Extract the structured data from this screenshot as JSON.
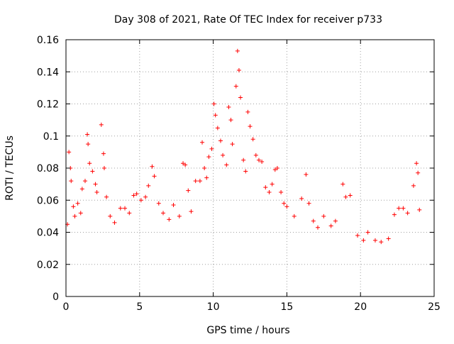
{
  "chart_data": {
    "type": "scatter",
    "title": "Day 308 of 2021, Rate Of TEC Index for receiver p733",
    "xlabel": "GPS time / hours",
    "ylabel": "ROTI / TECUs",
    "xlim": [
      0,
      25
    ],
    "ylim": [
      0,
      0.16
    ],
    "xticks": [
      0,
      5,
      10,
      15,
      20,
      25
    ],
    "yticks": [
      0,
      0.02,
      0.04,
      0.06,
      0.08,
      0.1,
      0.12,
      0.14,
      0.16
    ],
    "xtick_labels": [
      "0",
      "5",
      "10",
      "15",
      "20",
      "25"
    ],
    "ytick_labels": [
      "0",
      "0.02",
      "0.04",
      "0.06",
      "0.08",
      "0.1",
      "0.12",
      "0.14",
      "0.16"
    ],
    "grid": true,
    "marker": "plus",
    "color": "#ff0000",
    "series": [
      {
        "points": [
          [
            0.1,
            0.045
          ],
          [
            0.2,
            0.09
          ],
          [
            0.3,
            0.08
          ],
          [
            0.35,
            0.072
          ],
          [
            0.5,
            0.056
          ],
          [
            0.6,
            0.05
          ],
          [
            0.8,
            0.058
          ],
          [
            1.0,
            0.052
          ],
          [
            1.1,
            0.067
          ],
          [
            1.3,
            0.072
          ],
          [
            1.45,
            0.101
          ],
          [
            1.5,
            0.095
          ],
          [
            1.6,
            0.083
          ],
          [
            1.8,
            0.078
          ],
          [
            2.0,
            0.07
          ],
          [
            2.1,
            0.065
          ],
          [
            2.4,
            0.107
          ],
          [
            2.55,
            0.089
          ],
          [
            2.6,
            0.08
          ],
          [
            2.75,
            0.062
          ],
          [
            3.0,
            0.05
          ],
          [
            3.3,
            0.046
          ],
          [
            3.7,
            0.055
          ],
          [
            4.0,
            0.055
          ],
          [
            4.3,
            0.052
          ],
          [
            4.6,
            0.063
          ],
          [
            4.8,
            0.064
          ],
          [
            5.1,
            0.06
          ],
          [
            5.4,
            0.062
          ],
          [
            5.6,
            0.069
          ],
          [
            5.85,
            0.081
          ],
          [
            6.0,
            0.075
          ],
          [
            6.3,
            0.058
          ],
          [
            6.6,
            0.052
          ],
          [
            7.0,
            0.048
          ],
          [
            7.3,
            0.057
          ],
          [
            7.7,
            0.05
          ],
          [
            7.95,
            0.083
          ],
          [
            8.1,
            0.082
          ],
          [
            8.3,
            0.066
          ],
          [
            8.5,
            0.053
          ],
          [
            8.8,
            0.072
          ],
          [
            9.1,
            0.072
          ],
          [
            9.25,
            0.096
          ],
          [
            9.4,
            0.08
          ],
          [
            9.55,
            0.074
          ],
          [
            9.7,
            0.087
          ],
          [
            9.9,
            0.092
          ],
          [
            10.05,
            0.12
          ],
          [
            10.15,
            0.113
          ],
          [
            10.3,
            0.105
          ],
          [
            10.5,
            0.097
          ],
          [
            10.65,
            0.088
          ],
          [
            10.9,
            0.082
          ],
          [
            11.05,
            0.118
          ],
          [
            11.2,
            0.11
          ],
          [
            11.3,
            0.095
          ],
          [
            11.55,
            0.131
          ],
          [
            11.65,
            0.153
          ],
          [
            11.75,
            0.141
          ],
          [
            11.85,
            0.124
          ],
          [
            12.05,
            0.085
          ],
          [
            12.2,
            0.078
          ],
          [
            12.35,
            0.115
          ],
          [
            12.5,
            0.106
          ],
          [
            12.7,
            0.098
          ],
          [
            12.9,
            0.088
          ],
          [
            13.1,
            0.085
          ],
          [
            13.3,
            0.084
          ],
          [
            13.55,
            0.068
          ],
          [
            13.8,
            0.065
          ],
          [
            14.0,
            0.07
          ],
          [
            14.2,
            0.079
          ],
          [
            14.35,
            0.08
          ],
          [
            14.6,
            0.065
          ],
          [
            14.8,
            0.058
          ],
          [
            15.0,
            0.056
          ],
          [
            15.5,
            0.05
          ],
          [
            16.0,
            0.061
          ],
          [
            16.3,
            0.076
          ],
          [
            16.5,
            0.058
          ],
          [
            16.8,
            0.047
          ],
          [
            17.1,
            0.043
          ],
          [
            17.5,
            0.05
          ],
          [
            18.0,
            0.044
          ],
          [
            18.3,
            0.047
          ],
          [
            18.8,
            0.07
          ],
          [
            19.0,
            0.062
          ],
          [
            19.3,
            0.063
          ],
          [
            19.8,
            0.038
          ],
          [
            20.2,
            0.035
          ],
          [
            20.5,
            0.04
          ],
          [
            21.0,
            0.035
          ],
          [
            21.4,
            0.034
          ],
          [
            21.9,
            0.036
          ],
          [
            22.3,
            0.051
          ],
          [
            22.6,
            0.055
          ],
          [
            22.9,
            0.055
          ],
          [
            23.2,
            0.052
          ],
          [
            23.6,
            0.069
          ],
          [
            23.8,
            0.083
          ],
          [
            23.9,
            0.077
          ],
          [
            24.0,
            0.054
          ]
        ]
      }
    ]
  }
}
